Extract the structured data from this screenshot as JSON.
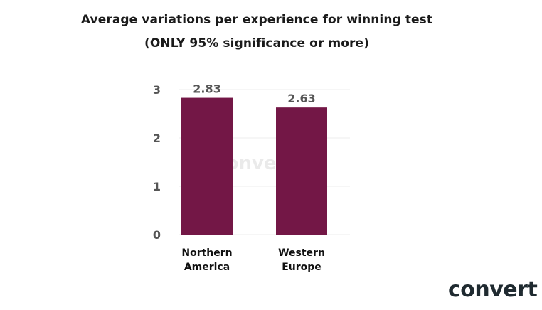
{
  "title": {
    "line1": "Average variations per experience for winning test",
    "line2": "(ONLY 95% significance or more)"
  },
  "brand": {
    "logo_text": "convert",
    "watermark_text": "convert"
  },
  "colors": {
    "bar": "#731746",
    "grid": "#eeeeee",
    "tick_text": "#555555",
    "category_text": "#111111"
  },
  "chart_data": {
    "type": "bar",
    "categories": [
      [
        "Northern",
        "America"
      ],
      [
        "Western",
        "Europe"
      ]
    ],
    "values": [
      2.83,
      2.63
    ],
    "data_labels": [
      "2.83",
      "2.63"
    ],
    "yticks": [
      0,
      1,
      2,
      3
    ],
    "ylim": [
      0,
      3
    ],
    "grid": true,
    "legend": "none"
  }
}
